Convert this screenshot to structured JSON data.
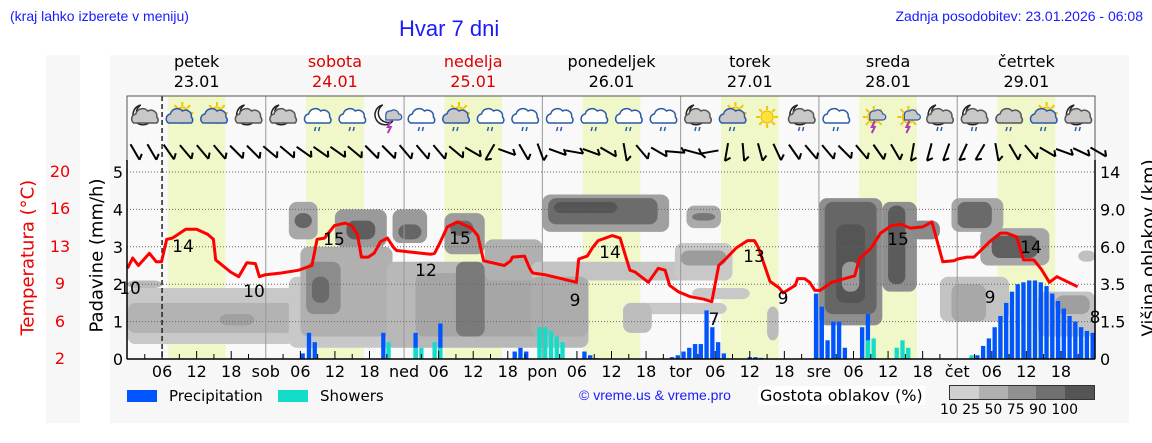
{
  "header": {
    "hint": "(kraj lahko izberete v meniju)",
    "title": "Hvar 7 dni",
    "updated": "Zadnja posodobitev: 23.01.2026 - 06:08"
  },
  "days": [
    {
      "name": "petek",
      "date": "23.01",
      "weekend": false
    },
    {
      "name": "sobota",
      "date": "24.01",
      "weekend": true
    },
    {
      "name": "nedelja",
      "date": "25.01",
      "weekend": true
    },
    {
      "name": "ponedeljek",
      "date": "26.01",
      "weekend": false
    },
    {
      "name": "torek",
      "date": "27.01",
      "weekend": false
    },
    {
      "name": "sreda",
      "date": "28.01",
      "weekend": false
    },
    {
      "name": "četrtek",
      "date": "29.01",
      "weekend": false
    }
  ],
  "weather_icons": [
    "moon-cloud-icon",
    "sun-cloud-icon",
    "sun-cloud-icon",
    "moon-cloud-icon",
    "moon-cloud-icon",
    "cloud-light-rain-icon",
    "cloud-light-rain-icon",
    "moon-thunder-icon",
    "cloud-light-rain-icon",
    "sun-cloud-rain-icon",
    "cloud-light-rain-icon",
    "cloud-light-rain-icon",
    "cloud-light-rain-icon",
    "cloud-light-rain-icon",
    "cloud-light-rain-icon",
    "cloud-light-rain-icon",
    "moon-cloud-rain-icon",
    "sun-cloud-rain-icon",
    "sun-icon",
    "moon-cloud-rain-icon",
    "cloud-light-rain-icon",
    "sun-thunder-icon",
    "sun-thunder-icon",
    "moon-cloud-rain-icon",
    "moon-cloud-rain-icon",
    "cloud-rain-icon",
    "sun-cloud-rain-icon",
    "moon-cloud-rain-icon"
  ],
  "legend": {
    "precipitation": "Precipitation",
    "showers": "Showers",
    "precipitation_color": "#0055ff",
    "showers_color": "#11ddc8",
    "credit": "© vreme.us & vreme.pro",
    "density_title": "Gostota oblakov (%)",
    "density_ticks": "10 25 50 75 90 100",
    "density_colors": [
      "#d0d0d0",
      "#b0b0b0",
      "#909090",
      "#707070",
      "#555555"
    ]
  },
  "chart_data": {
    "type": "line+bar",
    "title": "Hvar 7 dni",
    "xlabel": "",
    "ylabel_left_temp": "Temperatura (°C)",
    "ylabel_left_precip": "Padavine (mm/h)",
    "ylabel_right": "Višina oblakov (km)",
    "temp_ticks": [
      2,
      6,
      9,
      13,
      16,
      20
    ],
    "precip_ticks": [
      0,
      1,
      2,
      3,
      4,
      5
    ],
    "cloud_height_ticks": [
      "0",
      "1.5",
      "3.5",
      "6.0",
      "9.0",
      "14"
    ],
    "ylim_precip": [
      0,
      5
    ],
    "x_tick_labels": [
      "06",
      "12",
      "18",
      "sob",
      "06",
      "12",
      "18",
      "ned",
      "06",
      "12",
      "18",
      "pon",
      "06",
      "12",
      "18",
      "tor",
      "06",
      "12",
      "18",
      "sre",
      "06",
      "12",
      "18",
      "čet",
      "06",
      "12",
      "18"
    ],
    "now_marker_hour": 6,
    "temperature_labels": [
      {
        "hour": 10,
        "value": 14
      },
      {
        "hour": 22,
        "value": 10
      },
      {
        "hour": 0,
        "value": 10
      },
      {
        "hour": 35,
        "value": 15
      },
      {
        "hour": 52,
        "value": 12
      },
      {
        "hour": 57,
        "value": 15
      },
      {
        "hour": 82,
        "value": 9
      },
      {
        "hour": 84,
        "value": 14
      },
      {
        "hour": 102,
        "value": 7
      },
      {
        "hour": 111,
        "value": 13
      },
      {
        "hour": 114,
        "value": 9
      },
      {
        "hour": 134,
        "value": 15
      },
      {
        "hour": 148,
        "value": 9
      },
      {
        "hour": 156,
        "value": 14
      },
      {
        "hour": 167,
        "value": 8
      }
    ],
    "temperature_series": {
      "name": "Temperatura",
      "color": "#ff0000",
      "hours": [
        0,
        0.9,
        1.9,
        3.8,
        5,
        5.9,
        6.8,
        7.8,
        10.1,
        12,
        13.9,
        14.9,
        15.3,
        17.9,
        19.3,
        20.7,
        22.2,
        22.9,
        23.8,
        26.7,
        29.7,
        32,
        32.9,
        34.2,
        35.9,
        37.8,
        38.9,
        39.9,
        40.6,
        41.8,
        42.8,
        43.9,
        45.1,
        46.2,
        46.7,
        52.6,
        53.3,
        54.3,
        55.5,
        57.3,
        59.7,
        60.8,
        61.8,
        65.4,
        66.5,
        66.8,
        68.9,
        69.8,
        70.3,
        72.6,
        73.9,
        77.9,
        78.3,
        79.8,
        80.7,
        81.7,
        84.1,
        85.5,
        87.2,
        88.1,
        90.4,
        92.1,
        93.3,
        94.1,
        95.6,
        97.7,
        100,
        101.4,
        102.6,
        103.8,
        105.7,
        107.6,
        108.8,
        109.5,
        111.5,
        113.1,
        113.8,
        115.9,
        116.3,
        117.5,
        118.4,
        119.3,
        120.2,
        122.2,
        126.2,
        127,
        129.1,
        130.7,
        132.6,
        134.2,
        135.9,
        138,
        139.6,
        141.5,
        143.4,
        144.1,
        145.7,
        146.9,
        148.6,
        149.6,
        151.5,
        152.6,
        154.3,
        155.5,
        157.3,
        158.6,
        160,
        161.3,
        164.9
      ],
      "values": [
        10.7,
        11.8,
        11.0,
        12.3,
        11.4,
        11.4,
        13.6,
        13.7,
        14.4,
        14.4,
        14.0,
        13.6,
        11.6,
        10.3,
        9.8,
        11.3,
        11.2,
        9.8,
        10.0,
        10.2,
        10.5,
        11.0,
        13.6,
        13.7,
        14.7,
        14.9,
        14.7,
        14.0,
        11.9,
        11.9,
        12.3,
        13.4,
        13.7,
        12.9,
        12.6,
        12.2,
        12.3,
        13.4,
        14.6,
        15.0,
        14.5,
        13.9,
        11.5,
        11.0,
        11.5,
        11.9,
        12.0,
        10.7,
        10.2,
        10.0,
        9.8,
        9.2,
        11.7,
        12.0,
        12.9,
        13.5,
        13.9,
        13.7,
        10.5,
        10.3,
        9.2,
        10.7,
        10.5,
        8.9,
        8.4,
        8.0,
        7.8,
        7.6,
        11.0,
        11.7,
        12.9,
        13.5,
        13.5,
        12.9,
        9.3,
        8.7,
        8.3,
        8.9,
        9.6,
        9.6,
        9.2,
        8.5,
        8.5,
        9.2,
        9.9,
        11.7,
        12.9,
        14.1,
        14.7,
        14.8,
        14.5,
        14.6,
        15.0,
        11.4,
        11.5,
        11.7,
        11.9,
        11.9,
        12.9,
        13.4,
        14.1,
        14.1,
        13.8,
        11.6,
        11.6,
        10.6,
        9.2,
        9.8,
        8.8,
        7.8,
        7.8
      ]
    },
    "precipitation_series": {
      "name": "Precipitation",
      "color": "#0055ff",
      "bars": [
        [
          30.4,
          0.15
        ],
        [
          31.5,
          0.7
        ],
        [
          32.5,
          0.45
        ],
        [
          44.4,
          0.7
        ],
        [
          50,
          0.7
        ],
        [
          54.3,
          0.95
        ],
        [
          67.2,
          0.2
        ],
        [
          68.2,
          0.3
        ],
        [
          69.2,
          0.2
        ],
        [
          79.3,
          0.2
        ],
        [
          80.3,
          0.1
        ],
        [
          81.3,
          0.02
        ],
        [
          94.5,
          0.05
        ],
        [
          95.5,
          0.1
        ],
        [
          96.5,
          0.2
        ],
        [
          97.5,
          0.3
        ],
        [
          98.5,
          0.4
        ],
        [
          99.5,
          0.4
        ],
        [
          100.5,
          1.3
        ],
        [
          101.5,
          0.85
        ],
        [
          102.5,
          0.45
        ],
        [
          103.5,
          0.15
        ],
        [
          108,
          0.05
        ],
        [
          109,
          0.05
        ],
        [
          110,
          0.03
        ],
        [
          119.5,
          1.75
        ],
        [
          120.5,
          1.4
        ],
        [
          121.5,
          0.5
        ],
        [
          122.5,
          1.0
        ],
        [
          123.5,
          1.0
        ],
        [
          124.5,
          0.3
        ],
        [
          127.5,
          0.85
        ],
        [
          128.5,
          1.2
        ],
        [
          147.5,
          0.1
        ],
        [
          148.5,
          0.35
        ],
        [
          149.5,
          0.55
        ],
        [
          150.5,
          0.85
        ],
        [
          151.5,
          1.15
        ],
        [
          152.5,
          1.5
        ],
        [
          153.5,
          1.8
        ],
        [
          154.5,
          2.0
        ],
        [
          155.5,
          2.05
        ],
        [
          156.5,
          2.1
        ],
        [
          157.5,
          2.1
        ],
        [
          158.5,
          2.05
        ],
        [
          159.5,
          1.95
        ],
        [
          160.5,
          1.75
        ],
        [
          161.5,
          1.55
        ],
        [
          162.5,
          1.35
        ],
        [
          163.5,
          1.15
        ],
        [
          164.5,
          1.0
        ],
        [
          165.5,
          0.85
        ],
        [
          166.5,
          0.75
        ],
        [
          167.5,
          0.7
        ]
      ]
    },
    "showers_series": {
      "name": "Showers",
      "color": "#11ddc8",
      "bars": [
        [
          45.3,
          0.45
        ],
        [
          50,
          0.3
        ],
        [
          51,
          0.3
        ],
        [
          53.3,
          0.45
        ],
        [
          54.3,
          0.3
        ],
        [
          71.5,
          0.85
        ],
        [
          72.5,
          0.85
        ],
        [
          73.5,
          0.75
        ],
        [
          74.5,
          0.6
        ],
        [
          75.5,
          0.45
        ],
        [
          128.5,
          0.5
        ],
        [
          129.5,
          0.55
        ],
        [
          133.5,
          0.3
        ],
        [
          134.5,
          0.5
        ],
        [
          135.5,
          0.3
        ],
        [
          146.5,
          0.1
        ]
      ]
    },
    "daylight_hours": [
      7,
      17
    ],
    "cloud_density_levels": [
      10,
      25,
      50,
      75,
      90,
      100
    ]
  }
}
